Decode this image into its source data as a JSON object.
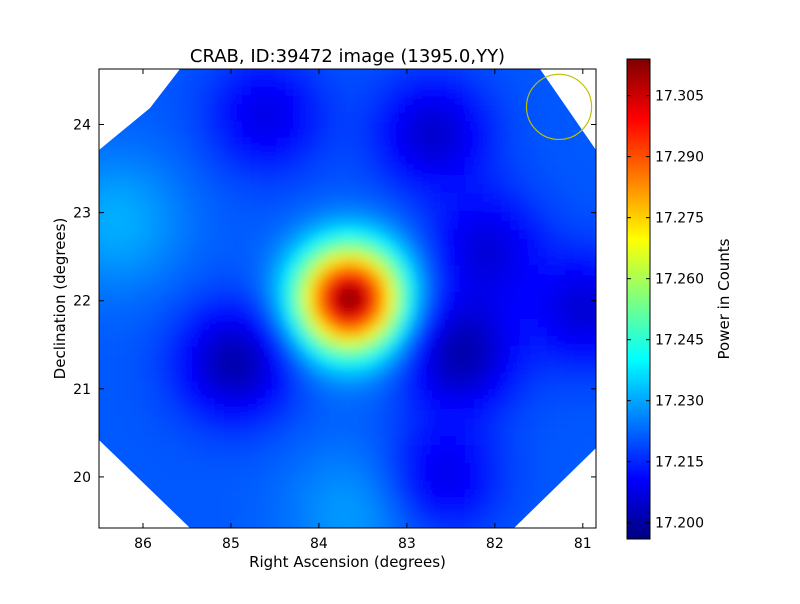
{
  "chart_data": {
    "type": "heatmap",
    "title": "CRAB, ID:39472 image (1395.0,YY)",
    "xlabel": "Right Ascension (degrees)",
    "ylabel": "Declination (degrees)",
    "xlim": [
      86.5,
      80.85
    ],
    "ylim": [
      19.42,
      24.63
    ],
    "x_ticks": [
      "86",
      "85",
      "84",
      "83",
      "82",
      "81"
    ],
    "y_ticks": [
      "20",
      "21",
      "22",
      "23",
      "24"
    ],
    "colorbar": {
      "label": "Power in Counts",
      "range": [
        17.196,
        17.314
      ],
      "ticks": [
        "17.200",
        "17.215",
        "17.230",
        "17.245",
        "17.260",
        "17.275",
        "17.290",
        "17.305"
      ],
      "colormap": [
        "#00007f",
        "#0000ff",
        "#007fff",
        "#00ffff",
        "#7fff7f",
        "#ffff00",
        "#ff7f00",
        "#ff0000",
        "#7f0000"
      ]
    },
    "background_level": 17.221,
    "features": [
      {
        "kind": "peak",
        "ra": 83.65,
        "dec": 22.02,
        "value": 17.313
      },
      {
        "kind": "trough",
        "ra": 84.95,
        "dec": 21.3,
        "value": 17.201
      },
      {
        "kind": "trough",
        "ra": 82.4,
        "dec": 21.4,
        "value": 17.201
      },
      {
        "kind": "trough",
        "ra": 82.7,
        "dec": 23.9,
        "value": 17.205
      },
      {
        "kind": "trough",
        "ra": 84.6,
        "dec": 24.1,
        "value": 17.208
      },
      {
        "kind": "trough",
        "ra": 82.1,
        "dec": 22.6,
        "value": 17.207
      },
      {
        "kind": "trough",
        "ra": 80.95,
        "dec": 21.9,
        "value": 17.206
      },
      {
        "kind": "trough",
        "ra": 82.6,
        "dec": 20.0,
        "value": 17.208
      },
      {
        "kind": "bump",
        "ra": 86.3,
        "dec": 22.9,
        "value": 17.231
      },
      {
        "kind": "bump",
        "ra": 83.6,
        "dec": 19.6,
        "value": 17.229
      }
    ],
    "beam_marker": {
      "ra": 81.27,
      "dec": 24.2,
      "radius_deg": 0.37,
      "color": "#bfbf00"
    }
  }
}
